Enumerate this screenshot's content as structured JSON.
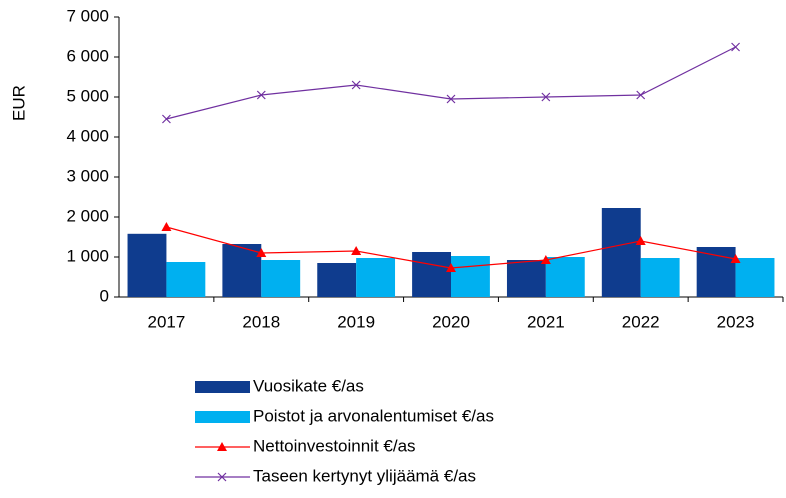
{
  "chart_data": {
    "type": "bar_line",
    "y_label": "EUR",
    "categories": [
      "2017",
      "2018",
      "2019",
      "2020",
      "2021",
      "2022",
      "2023"
    ],
    "series": [
      {
        "name": "Vuosikate €/as",
        "type": "bar",
        "color": "#0f3c8e",
        "values": [
          1580,
          1325,
          850,
          1125,
          925,
          2225,
          1250
        ]
      },
      {
        "name": "Poistot ja arvonalentumiset €/as",
        "type": "bar",
        "color": "#00b0f0",
        "values": [
          875,
          925,
          975,
          1025,
          1000,
          975,
          975
        ]
      },
      {
        "name": "Nettoinvestoinnit €/as",
        "type": "line",
        "marker": "triangle",
        "color": "#ff0000",
        "values": [
          1750,
          1100,
          1150,
          725,
          925,
          1400,
          950
        ]
      },
      {
        "name": "Taseen kertynyt ylijäämä €/as",
        "type": "line",
        "marker": "x",
        "color": "#7030a0",
        "values": [
          4450,
          5050,
          5300,
          4950,
          5000,
          5050,
          6250
        ]
      }
    ],
    "ylim": [
      0,
      7000
    ],
    "yticks": [
      0,
      {
        "value": 1000,
        "label": "1 000"
      },
      {
        "value": 2000,
        "label": "2 000"
      },
      {
        "value": 3000,
        "label": "3 000"
      },
      {
        "value": 4000,
        "label": "4 000"
      },
      {
        "value": 5000,
        "label": "5 000"
      },
      {
        "value": 6000,
        "label": "6 000"
      },
      {
        "value": 7000,
        "label": "7 000"
      }
    ],
    "legend": "bottom"
  }
}
